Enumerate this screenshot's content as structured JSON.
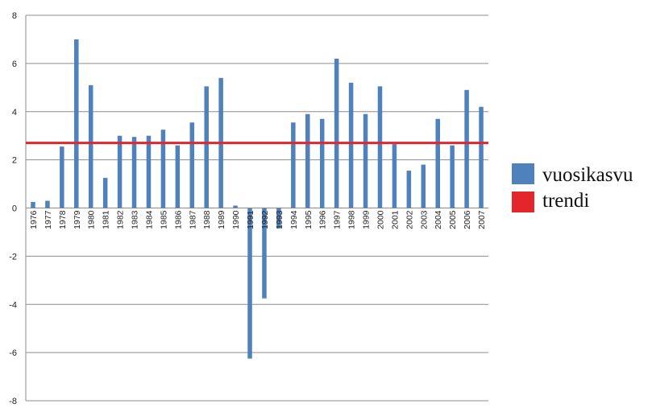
{
  "chart_data": {
    "type": "bar",
    "categories": [
      "1976",
      "1977",
      "1978",
      "1979",
      "1980",
      "1981",
      "1982",
      "1983",
      "1984",
      "1985",
      "1986",
      "1987",
      "1988",
      "1989",
      "1990",
      "1991",
      "1992",
      "1993",
      "1994",
      "1995",
      "1996",
      "1997",
      "1998",
      "1999",
      "2000",
      "2001",
      "2002",
      "2003",
      "2004",
      "2005",
      "2006",
      "2007"
    ],
    "series": [
      {
        "name": "vuosikasvu",
        "values": [
          0.25,
          0.3,
          2.55,
          7.0,
          5.1,
          1.25,
          3.0,
          2.95,
          3.0,
          3.25,
          2.6,
          3.55,
          5.05,
          5.4,
          0.1,
          -6.25,
          -3.75,
          -0.85,
          3.55,
          3.9,
          3.7,
          6.2,
          5.2,
          3.9,
          5.05,
          2.65,
          1.55,
          1.8,
          3.7,
          2.6,
          4.9,
          4.2
        ],
        "color": "#4f81bd"
      }
    ],
    "trend": {
      "name": "trendi",
      "value": 2.7,
      "color": "#e3262b"
    },
    "ylim": [
      -8,
      8
    ],
    "yticks": [
      -8,
      -6,
      -4,
      -2,
      0,
      2,
      4,
      6,
      8
    ],
    "grid": true,
    "legend_position": "right",
    "title": "",
    "xlabel": "",
    "ylabel": ""
  }
}
